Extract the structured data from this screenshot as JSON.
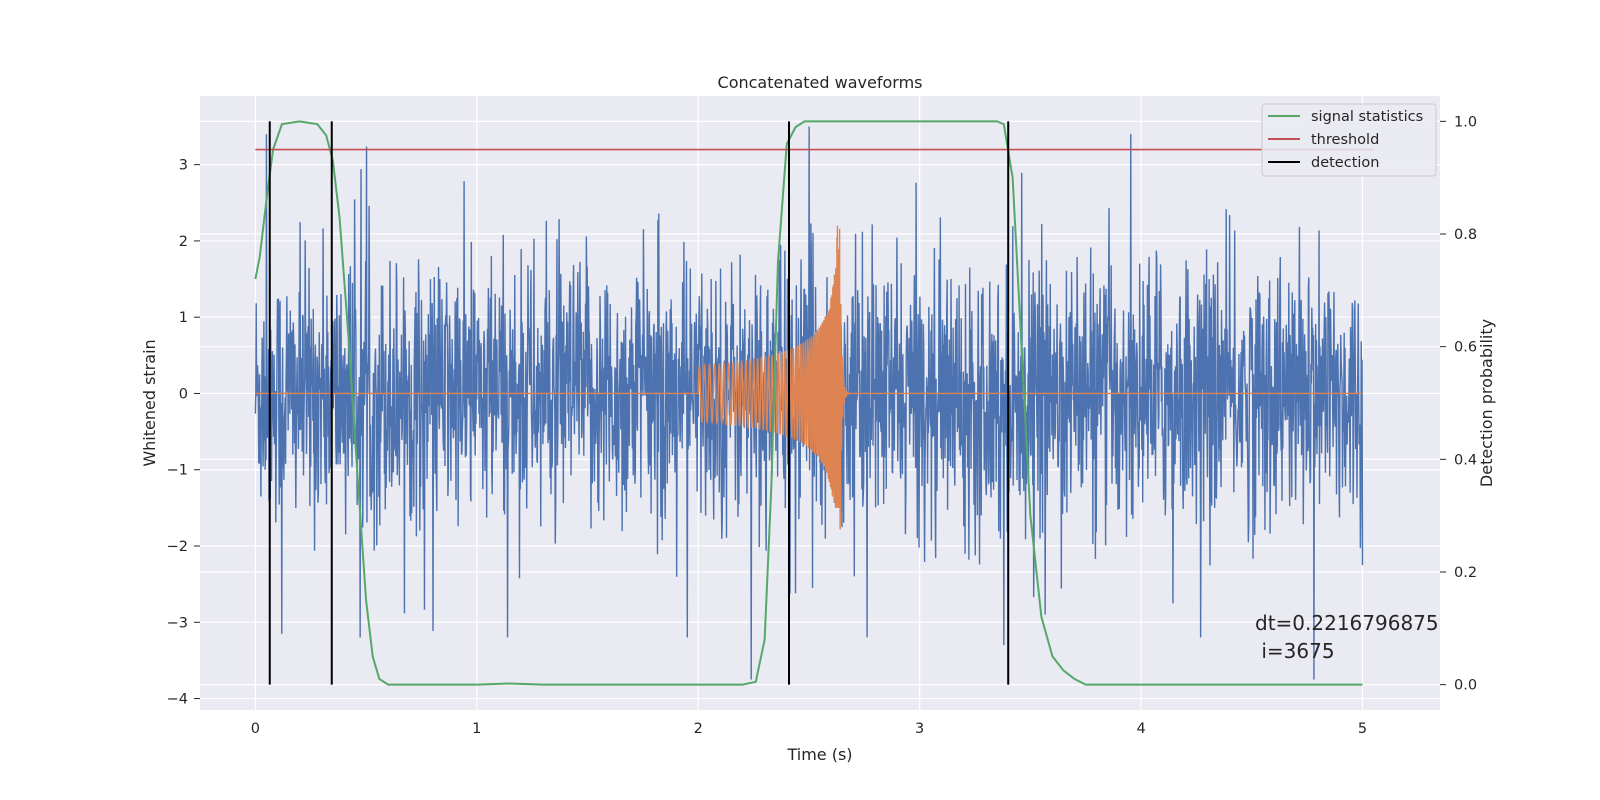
{
  "chart_data": {
    "type": "line",
    "title": "Concatenated waveforms",
    "xlabel": "Time (s)",
    "ylabel": "Whitened strain",
    "y2label": "Detection probability",
    "xlim": [
      -0.25,
      5.35
    ],
    "ylim": [
      -4.15,
      3.9
    ],
    "y2lim": [
      -0.045,
      1.045
    ],
    "x_ticks": [
      0,
      1,
      2,
      3,
      4,
      5
    ],
    "y_ticks": [
      -4,
      -3,
      -2,
      -1,
      0,
      1,
      2,
      3
    ],
    "y2_ticks": [
      0.0,
      0.2,
      0.4,
      0.6,
      0.8,
      1.0
    ],
    "y2_tick_labels": [
      "0.0",
      "0.2",
      "0.4",
      "0.6",
      "0.8",
      "1.0"
    ],
    "grid": true,
    "legend_position": "top-right",
    "strain_noise": {
      "x_range": [
        0,
        5
      ],
      "amplitude_envelope": [
        -3.2,
        3.4
      ],
      "color": "#4c72b0",
      "notable_spikes": [
        {
          "x": 0.05,
          "y": 3.4
        },
        {
          "x": 0.12,
          "y": -3.15
        },
        {
          "x": 2.24,
          "y": -3.75
        },
        {
          "x": 2.5,
          "y": 3.5
        },
        {
          "x": 3.38,
          "y": -3.3
        },
        {
          "x": 4.78,
          "y": -3.75
        }
      ]
    },
    "injected_waveform": {
      "x_range": [
        2.0,
        2.65
      ],
      "peak_x": 2.64,
      "peak_y": 2.2,
      "trough_y": -1.5,
      "color": "#dd8452"
    },
    "signal_statistics": {
      "color": "#55a868",
      "x": [
        0.0,
        0.02,
        0.05,
        0.08,
        0.12,
        0.2,
        0.28,
        0.32,
        0.35,
        0.38,
        0.42,
        0.46,
        0.5,
        0.53,
        0.56,
        0.6,
        1.0,
        1.15,
        1.3,
        2.0,
        2.2,
        2.26,
        2.3,
        2.33,
        2.36,
        2.4,
        2.44,
        2.48,
        2.55,
        3.0,
        3.35,
        3.38,
        3.42,
        3.46,
        3.5,
        3.55,
        3.6,
        3.65,
        3.7,
        3.75,
        4.0,
        5.0
      ],
      "y": [
        0.72,
        0.76,
        0.86,
        0.95,
        0.995,
        1.0,
        0.995,
        0.975,
        0.93,
        0.83,
        0.62,
        0.38,
        0.15,
        0.05,
        0.01,
        0.0,
        0.0,
        0.002,
        0.0,
        0.0,
        0.0,
        0.005,
        0.08,
        0.35,
        0.75,
        0.96,
        0.99,
        1.0,
        1.0,
        1.0,
        1.0,
        0.995,
        0.9,
        0.6,
        0.3,
        0.12,
        0.05,
        0.025,
        0.01,
        0.0,
        0.0,
        0.0
      ]
    },
    "threshold": {
      "y": 0.95,
      "x_range": [
        0,
        5.05
      ],
      "color": "#c44e52"
    },
    "detections": {
      "x": [
        0.065,
        0.345,
        2.41,
        3.4
      ],
      "y_range": [
        0.0,
        1.0
      ],
      "color": "#000000"
    },
    "legend": [
      {
        "label": "signal statistics",
        "color": "#55a868"
      },
      {
        "label": "threshold",
        "color": "#c44e52"
      },
      {
        "label": "detection",
        "color": "#000000"
      }
    ],
    "annotation": {
      "line1": "dt=0.2216796875",
      "line2": " i=3675"
    }
  }
}
